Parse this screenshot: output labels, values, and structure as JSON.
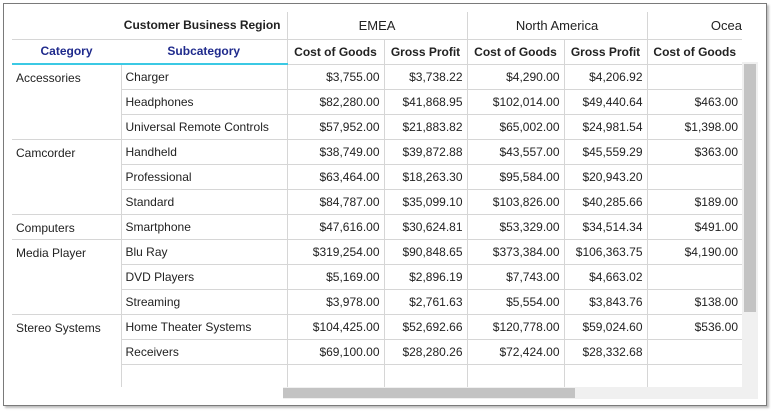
{
  "headers": {
    "region_label": "Customer Business Region",
    "regions": [
      "EMEA",
      "North America",
      "Ocea"
    ],
    "category_label": "Category",
    "subcategory_label": "Subcategory",
    "measures": [
      "Cost of Goods",
      "Gross Profit",
      "Cost of Goods",
      "Gross Profit",
      "Cost of Goods"
    ]
  },
  "rows": [
    {
      "category": "Accessories",
      "subcategory": "Charger",
      "values": [
        "$3,755.00",
        "$3,738.22",
        "$4,290.00",
        "$4,206.92",
        ""
      ]
    },
    {
      "category": "",
      "subcategory": "Headphones",
      "values": [
        "$82,280.00",
        "$41,868.95",
        "$102,014.00",
        "$49,440.64",
        "$463.00"
      ]
    },
    {
      "category": "",
      "subcategory": "Universal Remote Controls",
      "values": [
        "$57,952.00",
        "$21,883.82",
        "$65,002.00",
        "$24,981.54",
        "$1,398.00"
      ]
    },
    {
      "category": "Camcorder",
      "subcategory": "Handheld",
      "values": [
        "$38,749.00",
        "$39,872.88",
        "$43,557.00",
        "$45,559.29",
        "$363.00"
      ]
    },
    {
      "category": "",
      "subcategory": "Professional",
      "values": [
        "$63,464.00",
        "$18,263.30",
        "$95,584.00",
        "$20,943.20",
        ""
      ]
    },
    {
      "category": "",
      "subcategory": "Standard",
      "values": [
        "$84,787.00",
        "$35,099.10",
        "$103,826.00",
        "$40,285.66",
        "$189.00"
      ]
    },
    {
      "category": "Computers",
      "subcategory": "Smartphone",
      "values": [
        "$47,616.00",
        "$30,624.81",
        "$53,329.00",
        "$34,514.34",
        "$491.00"
      ]
    },
    {
      "category": "Media Player",
      "subcategory": "Blu Ray",
      "values": [
        "$319,254.00",
        "$90,848.65",
        "$373,384.00",
        "$106,363.75",
        "$4,190.00"
      ]
    },
    {
      "category": "",
      "subcategory": "DVD Players",
      "values": [
        "$5,169.00",
        "$2,896.19",
        "$7,743.00",
        "$4,663.02",
        ""
      ]
    },
    {
      "category": "",
      "subcategory": "Streaming",
      "values": [
        "$3,978.00",
        "$2,761.63",
        "$5,554.00",
        "$3,843.76",
        "$138.00"
      ]
    },
    {
      "category": "Stereo Systems",
      "subcategory": "Home Theater Systems",
      "values": [
        "$104,425.00",
        "$52,692.66",
        "$120,778.00",
        "$59,024.60",
        "$536.00"
      ]
    },
    {
      "category": "",
      "subcategory": "Receivers",
      "values": [
        "$69,100.00",
        "$28,280.26",
        "$72,424.00",
        "$28,332.68",
        ""
      ]
    },
    {
      "category": "",
      "subcategory": "",
      "values": [
        "",
        "",
        "",
        "",
        ""
      ]
    }
  ]
}
